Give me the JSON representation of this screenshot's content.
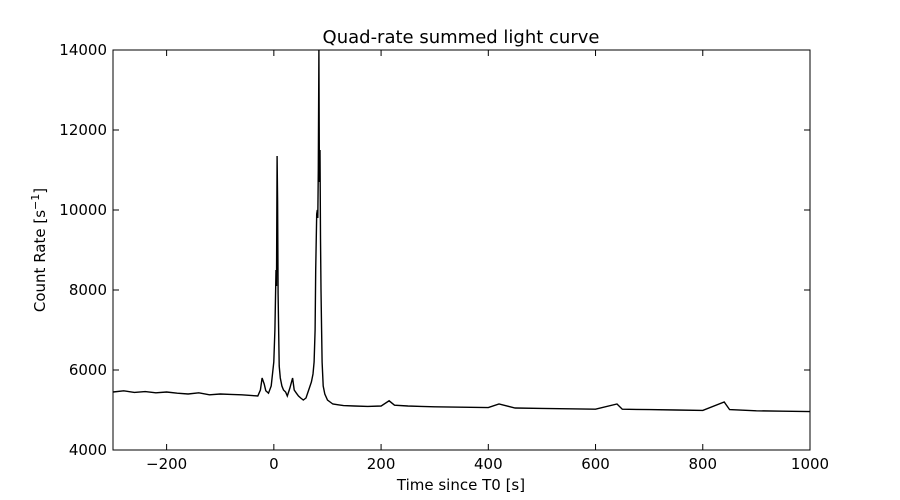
{
  "chart_data": {
    "type": "line",
    "title": "Quad-rate summed light curve",
    "xlabel": "Time since T0 [s]",
    "ylabel_main": "Count Rate [s",
    "ylabel_sup": "−1",
    "ylabel_end": "]",
    "xlim": [
      -300,
      1000
    ],
    "ylim": [
      4000,
      14000
    ],
    "xticks": [
      -200,
      0,
      200,
      400,
      600,
      800,
      1000
    ],
    "xtick_labels": [
      "−200",
      "0",
      "200",
      "400",
      "600",
      "800",
      "1000"
    ],
    "yticks": [
      4000,
      6000,
      8000,
      10000,
      12000,
      14000
    ],
    "ytick_labels": [
      "4000",
      "6000",
      "8000",
      "10000",
      "12000",
      "14000"
    ],
    "grid": false,
    "line_color": "#000000",
    "series": [
      {
        "x": [
          -300,
          -280,
          -260,
          -240,
          -220,
          -200,
          -180,
          -160,
          -140,
          -120,
          -100,
          -80,
          -60,
          -40,
          -30,
          -25,
          -22,
          -18,
          -15,
          -10,
          -5,
          0,
          2,
          4,
          5,
          6,
          7,
          8,
          9,
          10,
          12,
          15,
          18,
          22,
          25,
          30,
          35,
          38,
          42,
          46,
          50,
          55,
          60,
          65,
          70,
          73,
          75,
          77,
          78,
          80,
          81,
          82,
          83,
          84,
          85,
          86,
          87,
          88,
          89,
          90,
          92,
          95,
          100,
          105,
          110,
          120,
          130,
          150,
          175,
          200,
          215,
          225,
          250,
          275,
          300,
          350,
          400,
          420,
          450,
          500,
          550,
          600,
          640,
          650,
          700,
          750,
          800,
          840,
          850,
          900,
          950,
          1000
        ],
        "y": [
          5450,
          5480,
          5440,
          5460,
          5430,
          5450,
          5420,
          5400,
          5430,
          5380,
          5400,
          5390,
          5380,
          5360,
          5350,
          5500,
          5800,
          5650,
          5480,
          5420,
          5600,
          6200,
          7000,
          8500,
          8100,
          11350,
          10200,
          7900,
          6900,
          6100,
          5800,
          5600,
          5500,
          5450,
          5350,
          5550,
          5800,
          5500,
          5420,
          5350,
          5300,
          5250,
          5300,
          5500,
          5700,
          5900,
          6200,
          7000,
          8500,
          9900,
          10000,
          9800,
          11000,
          14000,
          10700,
          11500,
          9300,
          8000,
          7000,
          6200,
          5600,
          5400,
          5250,
          5200,
          5150,
          5130,
          5110,
          5100,
          5090,
          5100,
          5230,
          5120,
          5100,
          5090,
          5080,
          5070,
          5060,
          5150,
          5050,
          5040,
          5030,
          5020,
          5150,
          5020,
          5010,
          5000,
          4990,
          5200,
          5010,
          4980,
          4970,
          4960
        ]
      }
    ]
  }
}
